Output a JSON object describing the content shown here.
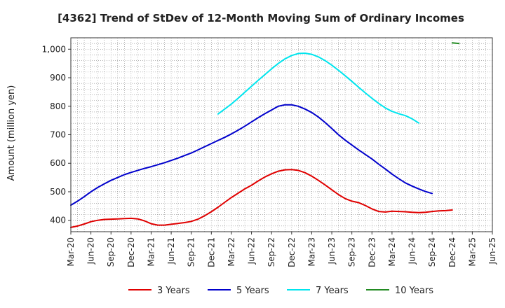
{
  "chart_data": {
    "type": "line",
    "title": "[4362]  Trend of StDev of 12-Month Moving Sum of Ordinary Incomes",
    "xlabel": "",
    "ylabel": "Amount (million yen)",
    "ylim": [
      360,
      1040
    ],
    "yticks": [
      400,
      500,
      600,
      700,
      800,
      900,
      1000
    ],
    "ytick_labels": [
      "400",
      "500",
      "600",
      "700",
      "800",
      "900",
      "1,000"
    ],
    "x_tick_labels": [
      "Mar-20",
      "Jun-20",
      "Sep-20",
      "Dec-20",
      "Mar-21",
      "Jun-21",
      "Sep-21",
      "Dec-21",
      "Mar-22",
      "Jun-22",
      "Sep-22",
      "Dec-22",
      "Mar-23",
      "Jun-23",
      "Sep-23",
      "Dec-23",
      "Mar-24",
      "Jun-24",
      "Sep-24",
      "Dec-24",
      "Mar-25",
      "Jun-25"
    ],
    "x_range_months": [
      0,
      63
    ],
    "grid": true,
    "legend_position": "bottom",
    "series": [
      {
        "name": "3 Years",
        "color": "#e00000",
        "points": [
          [
            0,
            375
          ],
          [
            1,
            380
          ],
          [
            2,
            387
          ],
          [
            3,
            395
          ],
          [
            4,
            400
          ],
          [
            5,
            403
          ],
          [
            6,
            404
          ],
          [
            7,
            405
          ],
          [
            8,
            406
          ],
          [
            9,
            407
          ],
          [
            10,
            405
          ],
          [
            11,
            398
          ],
          [
            12,
            388
          ],
          [
            13,
            383
          ],
          [
            14,
            383
          ],
          [
            15,
            386
          ],
          [
            16,
            389
          ],
          [
            17,
            392
          ],
          [
            18,
            396
          ],
          [
            19,
            404
          ],
          [
            20,
            416
          ],
          [
            21,
            430
          ],
          [
            22,
            446
          ],
          [
            23,
            463
          ],
          [
            24,
            480
          ],
          [
            25,
            495
          ],
          [
            26,
            510
          ],
          [
            27,
            523
          ],
          [
            28,
            538
          ],
          [
            29,
            552
          ],
          [
            30,
            563
          ],
          [
            31,
            572
          ],
          [
            32,
            577
          ],
          [
            33,
            578
          ],
          [
            34,
            575
          ],
          [
            35,
            567
          ],
          [
            36,
            555
          ],
          [
            37,
            540
          ],
          [
            38,
            524
          ],
          [
            39,
            507
          ],
          [
            40,
            490
          ],
          [
            41,
            476
          ],
          [
            42,
            467
          ],
          [
            43,
            462
          ],
          [
            44,
            452
          ],
          [
            45,
            440
          ],
          [
            46,
            431
          ],
          [
            47,
            429
          ],
          [
            48,
            432
          ],
          [
            49,
            431
          ],
          [
            50,
            430
          ],
          [
            51,
            428
          ],
          [
            52,
            427
          ],
          [
            53,
            428
          ],
          [
            54,
            431
          ],
          [
            55,
            433
          ],
          [
            56,
            434
          ],
          [
            57,
            436
          ]
        ]
      },
      {
        "name": "5 Years",
        "color": "#0000cc",
        "points": [
          [
            0,
            453
          ],
          [
            1,
            467
          ],
          [
            2,
            483
          ],
          [
            3,
            500
          ],
          [
            4,
            515
          ],
          [
            5,
            528
          ],
          [
            6,
            540
          ],
          [
            7,
            550
          ],
          [
            8,
            560
          ],
          [
            9,
            568
          ],
          [
            10,
            575
          ],
          [
            11,
            582
          ],
          [
            12,
            588
          ],
          [
            13,
            595
          ],
          [
            14,
            602
          ],
          [
            15,
            610
          ],
          [
            16,
            618
          ],
          [
            17,
            627
          ],
          [
            18,
            636
          ],
          [
            19,
            647
          ],
          [
            20,
            658
          ],
          [
            21,
            669
          ],
          [
            22,
            680
          ],
          [
            23,
            691
          ],
          [
            24,
            703
          ],
          [
            25,
            716
          ],
          [
            26,
            730
          ],
          [
            27,
            745
          ],
          [
            28,
            760
          ],
          [
            29,
            774
          ],
          [
            30,
            787
          ],
          [
            31,
            800
          ],
          [
            32,
            805
          ],
          [
            33,
            805
          ],
          [
            34,
            800
          ],
          [
            35,
            790
          ],
          [
            36,
            778
          ],
          [
            37,
            762
          ],
          [
            38,
            743
          ],
          [
            39,
            722
          ],
          [
            40,
            700
          ],
          [
            41,
            681
          ],
          [
            42,
            664
          ],
          [
            43,
            647
          ],
          [
            44,
            631
          ],
          [
            45,
            615
          ],
          [
            46,
            597
          ],
          [
            47,
            580
          ],
          [
            48,
            562
          ],
          [
            49,
            546
          ],
          [
            50,
            531
          ],
          [
            51,
            520
          ],
          [
            52,
            510
          ],
          [
            53,
            501
          ],
          [
            54,
            494
          ]
        ]
      },
      {
        "name": "7 Years",
        "color": "#00e5ee",
        "points": [
          [
            22,
            773
          ],
          [
            23,
            790
          ],
          [
            24,
            808
          ],
          [
            25,
            828
          ],
          [
            26,
            849
          ],
          [
            27,
            870
          ],
          [
            28,
            891
          ],
          [
            29,
            911
          ],
          [
            30,
            931
          ],
          [
            31,
            950
          ],
          [
            32,
            966
          ],
          [
            33,
            978
          ],
          [
            34,
            985
          ],
          [
            35,
            986
          ],
          [
            36,
            982
          ],
          [
            37,
            973
          ],
          [
            38,
            960
          ],
          [
            39,
            944
          ],
          [
            40,
            926
          ],
          [
            41,
            907
          ],
          [
            42,
            887
          ],
          [
            43,
            867
          ],
          [
            44,
            847
          ],
          [
            45,
            828
          ],
          [
            46,
            810
          ],
          [
            47,
            794
          ],
          [
            48,
            782
          ],
          [
            49,
            774
          ],
          [
            50,
            767
          ],
          [
            51,
            756
          ],
          [
            52,
            741
          ]
        ]
      },
      {
        "name": "10 Years",
        "color": "#228b22",
        "points": [
          [
            57,
            1022
          ],
          [
            58,
            1020
          ]
        ]
      }
    ]
  }
}
